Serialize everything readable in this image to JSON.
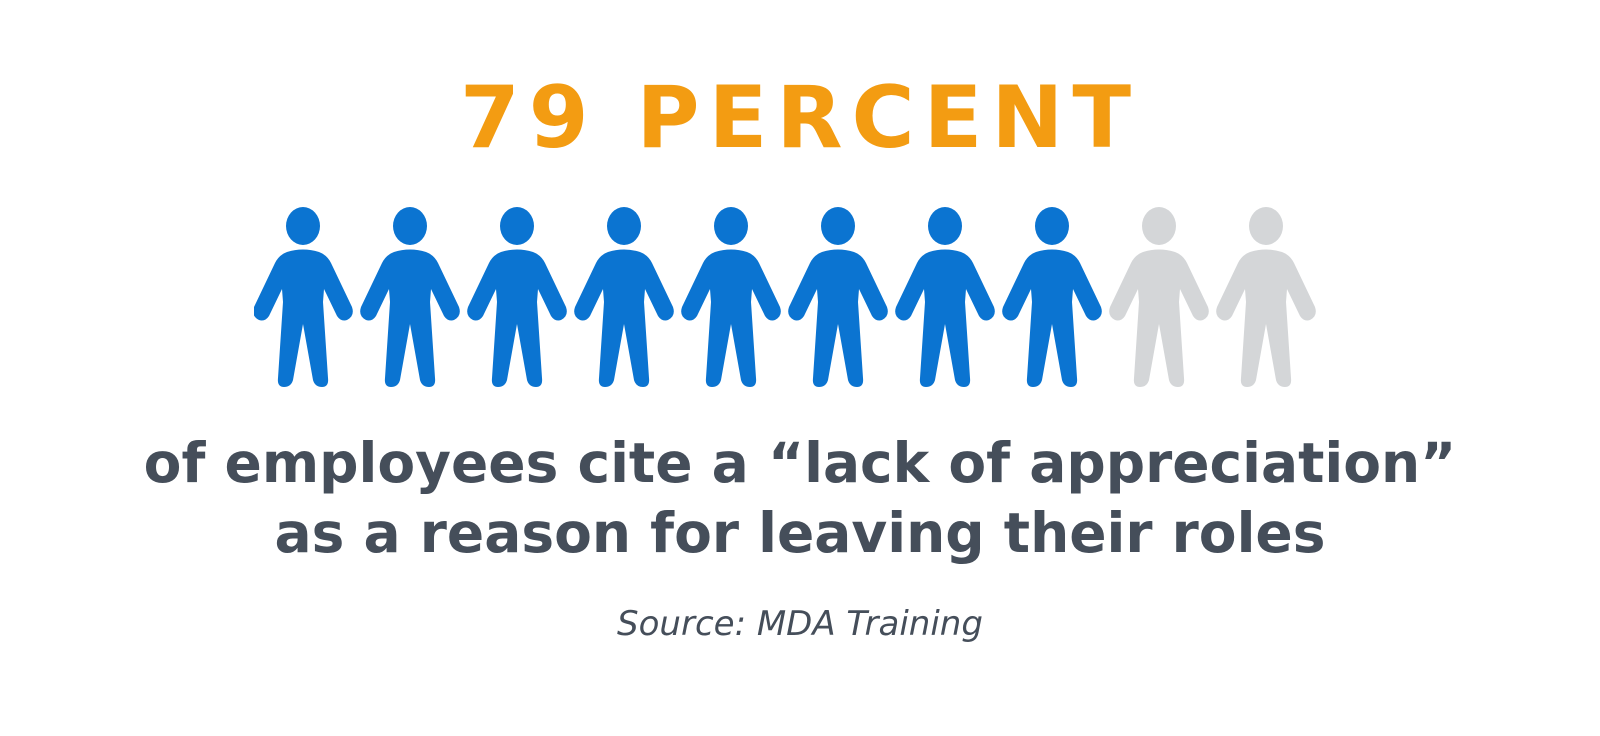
{
  "headline": "79 PERCENT",
  "people_icons": {
    "total": 10,
    "highlighted": 8,
    "highlight_color": "#0b74d1",
    "muted_color": "#d4d6d8",
    "icon": "person-icon"
  },
  "statement": {
    "line1": "of employees cite a “lack of appreciation”",
    "line2": "as a reason for leaving their roles"
  },
  "source": "Source: MDA Training",
  "colors": {
    "accent": "#f39c12",
    "text": "#454e5a",
    "background": "#ffffff"
  }
}
